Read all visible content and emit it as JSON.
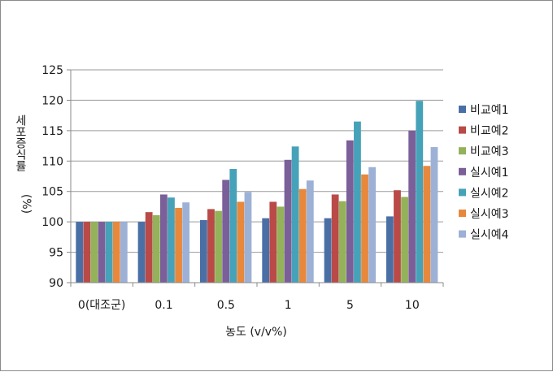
{
  "chart_data": {
    "type": "bar",
    "categories": [
      "0(대조군)",
      "0.1",
      "0.5",
      "1",
      "5",
      "10"
    ],
    "series": [
      {
        "name": "비교예1",
        "color": "#4a6fa5",
        "values": [
          100,
          100,
          100.3,
          100.6,
          100.6,
          100.9
        ]
      },
      {
        "name": "비교예2",
        "color": "#b94a48",
        "values": [
          100,
          101.6,
          102.1,
          103.3,
          104.5,
          105.2
        ]
      },
      {
        "name": "비교예3",
        "color": "#93b25a",
        "values": [
          100,
          101.1,
          101.8,
          102.5,
          103.4,
          104.1
        ]
      },
      {
        "name": "실시예1",
        "color": "#7a5f98",
        "values": [
          100,
          104.5,
          106.9,
          110.2,
          113.4,
          115.0
        ]
      },
      {
        "name": "실시예2",
        "color": "#46a2b8",
        "values": [
          100,
          104.0,
          108.7,
          112.4,
          116.5,
          119.9
        ]
      },
      {
        "name": "실시예3",
        "color": "#e7883c",
        "values": [
          100,
          102.3,
          103.3,
          105.4,
          107.8,
          109.2
        ]
      },
      {
        "name": "실시예4",
        "color": "#9db1d6",
        "values": [
          100,
          103.2,
          104.9,
          106.8,
          109.0,
          112.3
        ]
      }
    ],
    "xlabel": "농도 (v/v%)",
    "ylabel_main": "세포증식률",
    "ylabel_unit": "(%)",
    "ylim": [
      90,
      125
    ],
    "yticks": [
      90,
      95,
      100,
      105,
      110,
      115,
      120,
      125
    ],
    "grid": true,
    "legend_position": "right"
  }
}
